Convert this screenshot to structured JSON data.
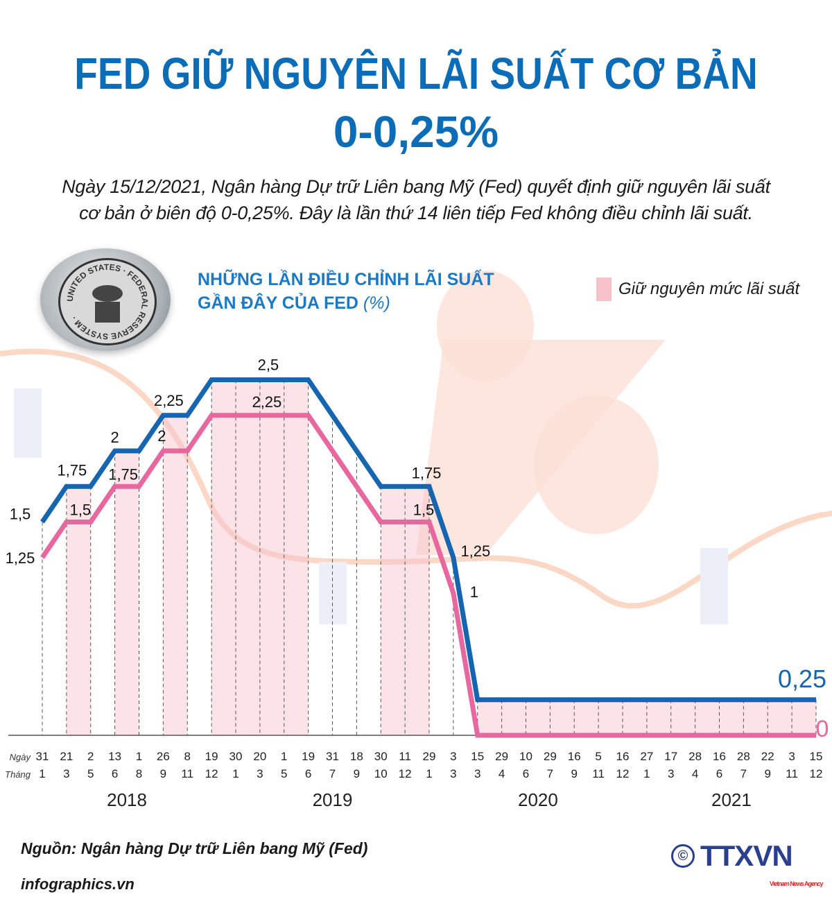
{
  "header": {
    "title_line1": "FED GIỮ NGUYÊN LÃI SUẤT CƠ BẢN",
    "title_line2": "0-0,25%",
    "intro_line1": "Ngày 15/12/2021, Ngân hàng Dự trữ Liên bang Mỹ (Fed) quyết định giữ nguyên lãi suất",
    "intro_line2": "cơ bản ở biên độ 0-0,25%. Đây là lần thứ 14 liên tiếp Fed  không điều chỉnh lãi suất."
  },
  "seal": {
    "text": "UNITED STATES · FEDERAL RESERVE SYSTEM"
  },
  "chart_data": {
    "type": "line",
    "title_line1": "NHỮNG LẦN ĐIỀU CHỈNH LÃI SUẤT",
    "title_line2": "GẦN ĐÂY CỦA FED",
    "title_unit": "(%)",
    "legend": {
      "label": "Giữ nguyên mức lãi suất",
      "color": "#f6c1cb"
    },
    "row_labels": {
      "day": "Ngày",
      "month": "Tháng"
    },
    "x_days": [
      "31",
      "21",
      "2",
      "13",
      "1",
      "26",
      "8",
      "19",
      "30",
      "20",
      "1",
      "19",
      "31",
      "18",
      "30",
      "11",
      "29",
      "3",
      "15",
      "29",
      "10",
      "29",
      "16",
      "5",
      "16",
      "27",
      "17",
      "28",
      "16",
      "28",
      "22",
      "3",
      "15"
    ],
    "x_months": [
      "1",
      "3",
      "5",
      "6",
      "8",
      "9",
      "11",
      "12",
      "1",
      "3",
      "5",
      "6",
      "7",
      "9",
      "10",
      "12",
      "1",
      "3",
      "3",
      "4",
      "6",
      "7",
      "9",
      "11",
      "12",
      "1",
      "3",
      "4",
      "6",
      "7",
      "9",
      "11",
      "12"
    ],
    "years": [
      {
        "label": "2018",
        "from": 0,
        "to": 7
      },
      {
        "label": "2019",
        "from": 8,
        "to": 16
      },
      {
        "label": "2020",
        "from": 17,
        "to": 24
      },
      {
        "label": "2021",
        "from": 25,
        "to": 32
      }
    ],
    "series": [
      {
        "color": "#1565b0",
        "values": [
          1.5,
          1.75,
          1.75,
          2,
          2,
          2.25,
          2.25,
          2.5,
          2.5,
          2.5,
          2.5,
          2.5,
          2.25,
          2,
          1.75,
          1.75,
          1.75,
          1.25,
          0.25,
          0.25,
          0.25,
          0.25,
          0.25,
          0.25,
          0.25,
          0.25,
          0.25,
          0.25,
          0.25,
          0.25,
          0.25,
          0.25,
          0.25
        ]
      },
      {
        "color": "#e8679e",
        "values": [
          1.25,
          1.5,
          1.5,
          1.75,
          1.75,
          2,
          2,
          2.25,
          2.25,
          2.25,
          2.25,
          2.25,
          2,
          1.75,
          1.5,
          1.5,
          1.5,
          1,
          0,
          0,
          0,
          0,
          0,
          0,
          0,
          0,
          0,
          0,
          0,
          0,
          0,
          0,
          0
        ]
      }
    ],
    "hold_periods": [
      [
        1,
        2
      ],
      [
        3,
        4
      ],
      [
        5,
        6
      ],
      [
        7,
        11
      ],
      [
        14,
        16
      ],
      [
        18,
        32
      ]
    ],
    "data_labels": [
      {
        "series": 0,
        "index": 0,
        "text": "1,5"
      },
      {
        "series": 0,
        "index": 1,
        "text": "1,75"
      },
      {
        "series": 0,
        "index": 3,
        "text": "2"
      },
      {
        "series": 0,
        "index": 5,
        "text": "2,25"
      },
      {
        "series": 0,
        "index": 9,
        "text": "2,5"
      },
      {
        "series": 0,
        "index": 16,
        "text": "1,75"
      },
      {
        "series": 0,
        "index": 17,
        "text": "1,25"
      },
      {
        "series": 0,
        "index": 32,
        "text": "0,25"
      },
      {
        "series": 1,
        "index": 0,
        "text": "1,25"
      },
      {
        "series": 1,
        "index": 1,
        "text": "1,5"
      },
      {
        "series": 1,
        "index": 3,
        "text": "1,75"
      },
      {
        "series": 1,
        "index": 5,
        "text": "2"
      },
      {
        "series": 1,
        "index": 9,
        "text": "2,25"
      },
      {
        "series": 1,
        "index": 16,
        "text": "1,5"
      },
      {
        "series": 1,
        "index": 17,
        "text": "1"
      },
      {
        "series": 1,
        "index": 32,
        "text": "0"
      }
    ],
    "ylim": [
      0,
      2.5
    ]
  },
  "footer": {
    "source": "Nguồn: Ngân hàng Dự trữ Liên bang Mỹ (Fed)",
    "site": "infographics.vn",
    "logo_text": "TTXVN",
    "logo_sub": "Vietnam News Agency",
    "copyright": "©"
  }
}
